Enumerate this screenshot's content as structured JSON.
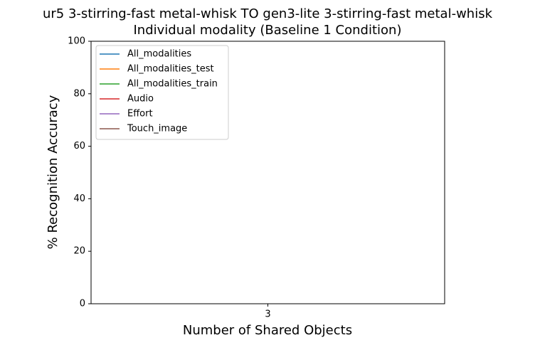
{
  "chart_data": {
    "type": "line",
    "title": "ur5 3-stirring-fast metal-whisk TO gen3-lite 3-stirring-fast metal-whisk",
    "subtitle": "Individual modality (Baseline 1 Condition)",
    "x_label": "Number of Shared Objects",
    "y_label": "% Recognition Accuracy",
    "categories": [
      "3"
    ],
    "series": [
      {
        "name": "All_modalities",
        "color": "#1f77b4",
        "values": [
          null
        ]
      },
      {
        "name": "All_modalities_test",
        "color": "#ff7f0e",
        "values": [
          null
        ]
      },
      {
        "name": "All_modalities_train",
        "color": "#2ca02c",
        "values": [
          null
        ]
      },
      {
        "name": "Audio",
        "color": "#d62728",
        "values": [
          null
        ]
      },
      {
        "name": "Effort",
        "color": "#9467bd",
        "values": [
          null
        ]
      },
      {
        "name": "Touch_image",
        "color": "#8c564b",
        "values": [
          null
        ]
      }
    ],
    "ylim": [
      0,
      100
    ],
    "yticks": [
      0,
      20,
      40,
      60,
      80,
      100
    ],
    "grid": false,
    "legend": "upper left"
  }
}
